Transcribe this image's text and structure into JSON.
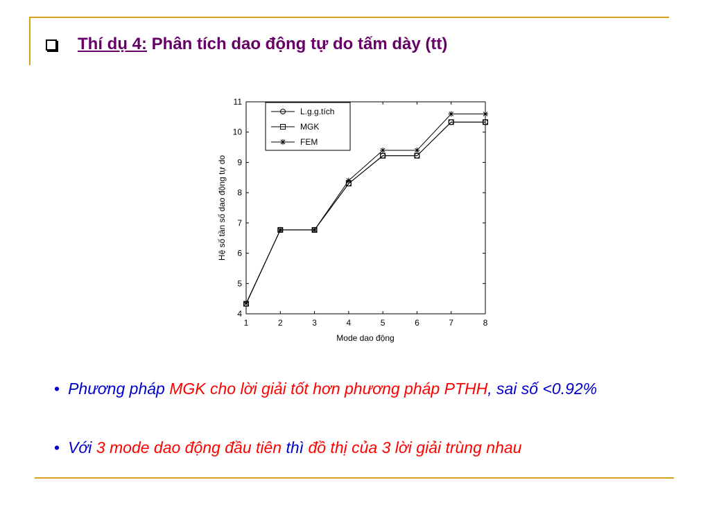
{
  "slide": {
    "title_label": "Thí dụ 4:",
    "title_text": "Phân tích dao động tự do tấm dày (tt)",
    "title_color": "#660066",
    "bullets": [
      {
        "runs": [
          {
            "text": "Phương pháp ",
            "color": "#0000cc"
          },
          {
            "text": "MGK cho lời giải tốt hơn phương pháp PTHH",
            "color": "#ff0000"
          },
          {
            "text": ", sai số <0.92%",
            "color": "#0000cc"
          }
        ]
      },
      {
        "runs": [
          {
            "text": "Với ",
            "color": "#0000cc"
          },
          {
            "text": "3 mode dao động đầu tiên ",
            "color": "#ff0000"
          },
          {
            "text": "thì ",
            "color": "#0000cc"
          },
          {
            "text": "đồ thị của 3 lời giải trùng nhau",
            "color": "#ff0000"
          }
        ]
      }
    ]
  },
  "chart_data": {
    "type": "line",
    "x_label": "Mode dao động",
    "y_label": "Hệ số tần số dao động tự do",
    "x": [
      1,
      2,
      3,
      4,
      5,
      6,
      7,
      8
    ],
    "series": [
      {
        "name": "L.g.g.tích",
        "color": "#000000",
        "marker": "circle",
        "values": [
          4.33,
          6.77,
          6.77,
          8.3,
          9.22,
          9.22,
          10.33,
          10.33
        ]
      },
      {
        "name": "MGK",
        "color": "#000000",
        "marker": "square",
        "values": [
          4.33,
          6.77,
          6.77,
          8.3,
          9.22,
          9.22,
          10.33,
          10.33
        ]
      },
      {
        "name": "FEM",
        "color": "#000000",
        "marker": "star",
        "values": [
          4.35,
          6.77,
          6.77,
          8.4,
          9.4,
          9.4,
          10.6,
          10.6
        ]
      }
    ],
    "xlim": [
      1,
      8
    ],
    "xticks": [
      1,
      2,
      3,
      4,
      5,
      6,
      7,
      8
    ],
    "ylim": [
      4,
      11
    ],
    "yticks": [
      4,
      5,
      6,
      7,
      8,
      9,
      10,
      11
    ],
    "legend": "top-left"
  }
}
